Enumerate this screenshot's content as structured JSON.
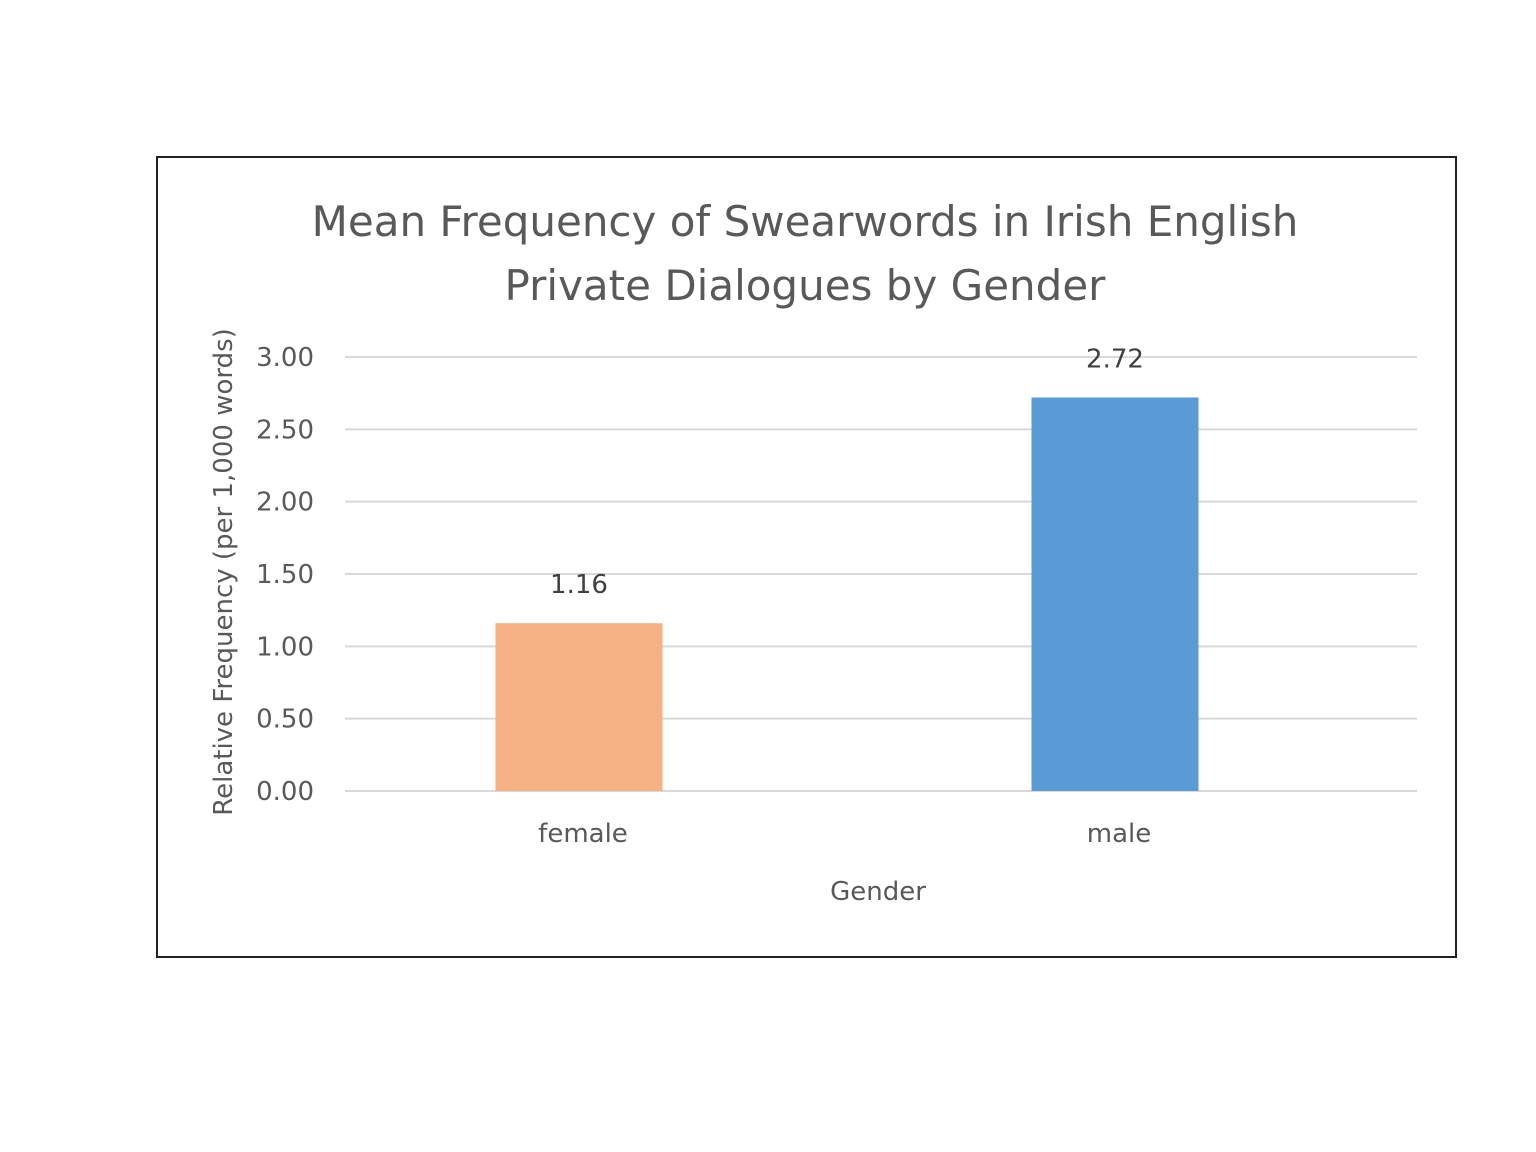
{
  "chart_data": {
    "type": "bar",
    "title": [
      "Mean Frequency of Swearwords in Irish English",
      "Private Dialogues by Gender"
    ],
    "xlabel": "Gender",
    "ylabel": "Relative Frequency (per 1,000 words)",
    "categories": [
      "female",
      "male"
    ],
    "values": [
      1.16,
      2.72
    ],
    "value_labels": [
      "1.16",
      "2.72"
    ],
    "colors": [
      "#F4B183",
      "#5B9BD5"
    ],
    "ylim": [
      0,
      3
    ],
    "yticks": [
      0,
      0.5,
      1,
      1.5,
      2,
      2.5,
      3
    ],
    "ytick_labels": [
      "0.00",
      "0.50",
      "1.00",
      "1.50",
      "2.00",
      "2.50",
      "3.00"
    ],
    "grid": true,
    "legend": false
  }
}
